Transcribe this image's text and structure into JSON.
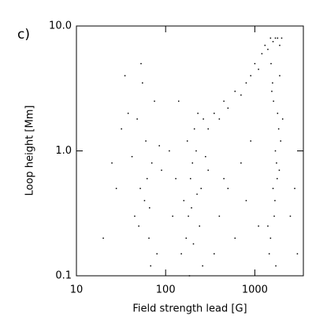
{
  "chart_data": {
    "type": "scatter",
    "panel_label": "c)",
    "x_label": "Field strength lead [G]",
    "y_label": "Loop height [Mm]",
    "log_x": true,
    "log_y": true,
    "xlim": [
      10,
      3500
    ],
    "ylim": [
      0.1,
      10
    ],
    "xticks": [
      10,
      100,
      1000
    ],
    "yticks": [
      0.1,
      {
        "value": 1,
        "label": "1.0"
      },
      {
        "value": 10,
        "label": "10.0"
      }
    ],
    "color": "#000000",
    "x": [
      45,
      52,
      60,
      38,
      70,
      65,
      55,
      80,
      48,
      62,
      58,
      42,
      75,
      68,
      50,
      85,
      35,
      90,
      66,
      53,
      150,
      180,
      200,
      220,
      250,
      170,
      210,
      260,
      190,
      230,
      160,
      240,
      280,
      205,
      175,
      300,
      195,
      265,
      225,
      185,
      300,
      350,
      400,
      450,
      500,
      600,
      700,
      800,
      900,
      1000,
      1100,
      1200,
      1300,
      1400,
      1500,
      1600,
      1700,
      1800,
      1900,
      2000,
      1500,
      1600,
      1700,
      1800,
      1550,
      1650,
      1750,
      1850,
      1900,
      1450,
      1620,
      1780,
      1520,
      1680,
      1950,
      1400,
      1580,
      1720,
      1880,
      2050,
      20,
      28,
      32,
      120,
      130,
      110,
      400,
      500,
      600,
      700,
      800,
      900,
      2500,
      2800,
      3000,
      25,
      140,
      350,
      450,
      1100
    ],
    "y": [
      0.3,
      0.5,
      1.2,
      2.0,
      0.8,
      0.2,
      3.5,
      0.15,
      1.8,
      0.6,
      0.4,
      0.9,
      2.5,
      0.12,
      0.25,
      1.1,
      4.0,
      0.7,
      0.35,
      5.0,
      0.15,
      0.3,
      0.8,
      1.0,
      0.5,
      0.2,
      1.5,
      0.12,
      0.6,
      2.0,
      0.4,
      0.25,
      0.9,
      0.18,
      1.2,
      0.7,
      0.35,
      1.8,
      0.45,
      0.1,
      1.5,
      2.0,
      1.8,
      2.5,
      2.2,
      3.0,
      2.8,
      3.5,
      4.0,
      5.0,
      4.5,
      6.0,
      7.0,
      6.5,
      8.0,
      7.5,
      8.0,
      8.0,
      7.0,
      8.0,
      0.2,
      0.5,
      1.0,
      2.0,
      3.0,
      0.3,
      0.8,
      1.5,
      4.0,
      0.15,
      2.5,
      0.6,
      5.0,
      0.4,
      1.2,
      0.25,
      3.5,
      0.12,
      0.7,
      1.8,
      0.2,
      0.5,
      1.5,
      0.3,
      0.6,
      1.0,
      0.3,
      0.5,
      0.2,
      0.8,
      0.4,
      1.2,
      0.3,
      0.5,
      0.15,
      0.8,
      2.5,
      0.15,
      0.6,
      0.25
    ]
  }
}
